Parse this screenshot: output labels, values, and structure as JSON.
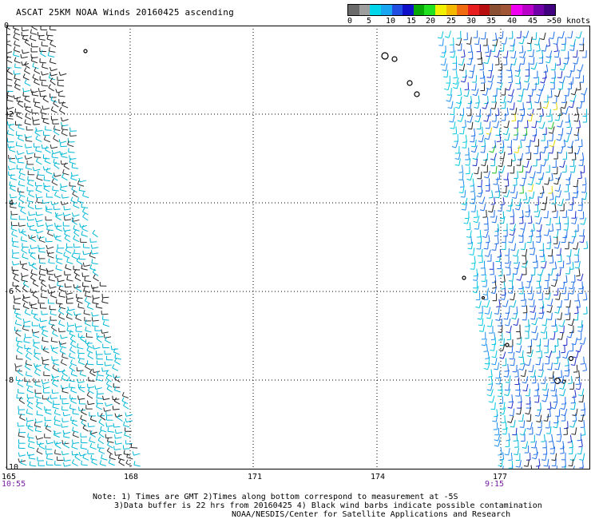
{
  "title": "ASCAT 25KM NOAA Winds 20160425 ascending",
  "legend": {
    "colors": [
      "#6a6a6a",
      "#9e9e9e",
      "#00d6ea",
      "#18a6f0",
      "#1f4ee0",
      "#1010c8",
      "#05a805",
      "#20e020",
      "#f0f000",
      "#f5b800",
      "#f06a10",
      "#e81e1e",
      "#b80e0e",
      "#8a4f30",
      "#a05535",
      "#f000f0",
      "#b800c8",
      "#7000a8",
      "#400080"
    ],
    "labels": [
      "0",
      "5",
      "10",
      "15",
      "20",
      "25",
      "30",
      "35",
      "40",
      "45",
      ">50 knots"
    ]
  },
  "axes": {
    "y_labels": [
      "0",
      "-2",
      "-4",
      "-6",
      "-8",
      "-10"
    ],
    "x_labels": [
      "165",
      "168",
      "171",
      "174",
      "177"
    ]
  },
  "times": {
    "left": "10:55",
    "right": "9:15"
  },
  "notes": {
    "line1": "Note: 1) Times are GMT 2)Times along bottom correspond to measurement at -5S",
    "line2": "3)Data buffer is 22 hrs from 20160425 4) Black wind barbs indicate possible contamination",
    "line3": "NOAA/NESDIS/Center for Satellite Applications and Research"
  }
}
